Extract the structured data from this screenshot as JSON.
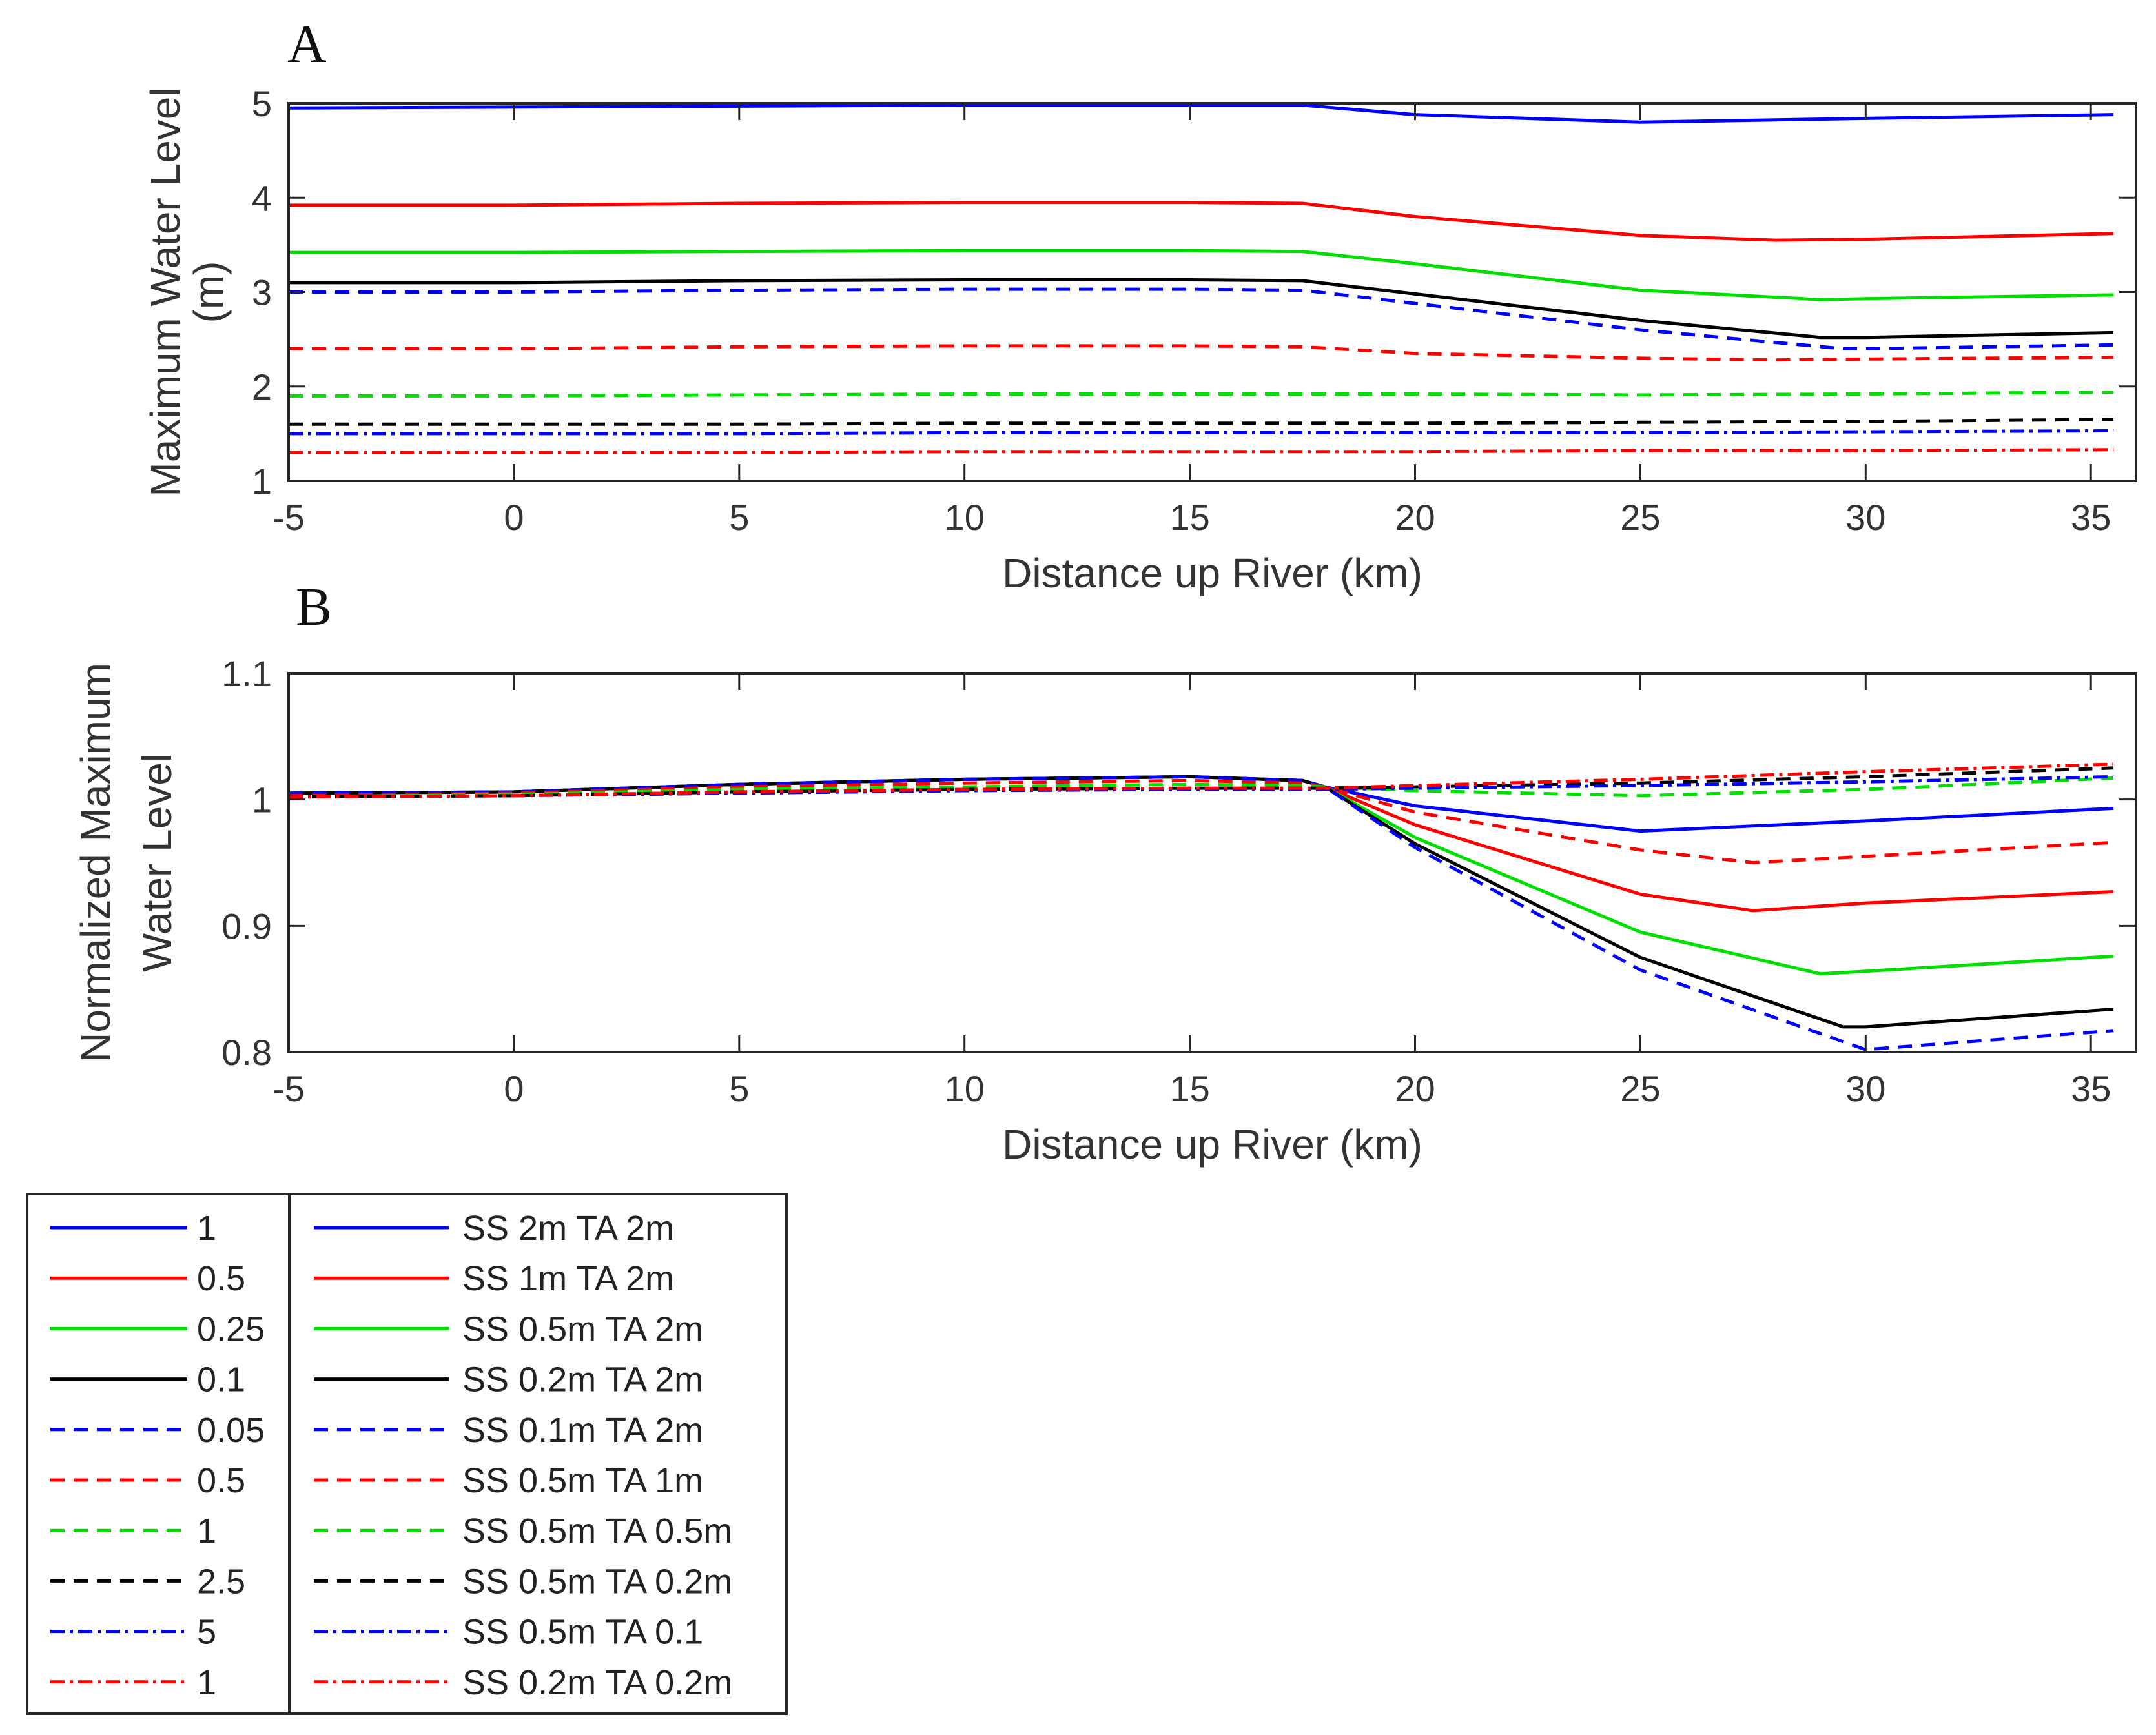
{
  "figure": {
    "panel_a_letter": "A",
    "panel_b_letter": "B"
  },
  "series_styles": [
    {
      "color": "#0000ff",
      "dash": "solid"
    },
    {
      "color": "#ff0000",
      "dash": "solid"
    },
    {
      "color": "#00e000",
      "dash": "solid"
    },
    {
      "color": "#000000",
      "dash": "solid"
    },
    {
      "color": "#0000ff",
      "dash": "dashed"
    },
    {
      "color": "#ff0000",
      "dash": "dashed"
    },
    {
      "color": "#00e000",
      "dash": "dashed"
    },
    {
      "color": "#000000",
      "dash": "dashed"
    },
    {
      "color": "#0000ff",
      "dash": "dashdot"
    },
    {
      "color": "#ff0000",
      "dash": "dashdot"
    }
  ],
  "chart_data": [
    {
      "id": "A",
      "type": "line",
      "title": "",
      "xlabel": "Distance up River (km)",
      "ylabel": "Maximum Water Level (m)",
      "ylabel_lines": [
        "Maximum Water Level",
        "(m)"
      ],
      "xlim": [
        -5,
        36
      ],
      "ylim": [
        1,
        5
      ],
      "xticks": [
        -5,
        0,
        5,
        10,
        15,
        20,
        25,
        30,
        35
      ],
      "yticks": [
        1,
        2,
        3,
        4,
        5
      ],
      "xtick_labels": [
        "-5",
        "0",
        "5",
        "10",
        "15",
        "20",
        "25",
        "30",
        "35"
      ],
      "ytick_labels": [
        "1",
        "2",
        "3",
        "4",
        "5"
      ],
      "series": [
        {
          "name": "SS 2m TA 2m",
          "x": [
            -5,
            0,
            5,
            10,
            15,
            17.5,
            20,
            25,
            30,
            35.5
          ],
          "y": [
            4.95,
            4.96,
            4.97,
            4.98,
            4.98,
            4.98,
            4.88,
            4.8,
            4.84,
            4.88
          ]
        },
        {
          "name": "SS 1m TA 2m",
          "x": [
            -5,
            0,
            5,
            10,
            15,
            17.5,
            20,
            25,
            28,
            30,
            35.5
          ],
          "y": [
            3.92,
            3.92,
            3.94,
            3.95,
            3.95,
            3.94,
            3.8,
            3.6,
            3.55,
            3.56,
            3.62
          ]
        },
        {
          "name": "SS 0.5m TA 2m",
          "x": [
            -5,
            0,
            5,
            10,
            15,
            17.5,
            20,
            25,
            29,
            30,
            35.5
          ],
          "y": [
            3.42,
            3.42,
            3.43,
            3.44,
            3.44,
            3.43,
            3.3,
            3.02,
            2.92,
            2.93,
            2.97
          ]
        },
        {
          "name": "SS 0.2m TA 2m",
          "x": [
            -5,
            0,
            5,
            10,
            15,
            17.5,
            20,
            25,
            29,
            30,
            35.5
          ],
          "y": [
            3.1,
            3.1,
            3.12,
            3.13,
            3.13,
            3.12,
            2.98,
            2.7,
            2.52,
            2.52,
            2.57
          ]
        },
        {
          "name": "SS 0.1m TA 2m",
          "x": [
            -5,
            0,
            5,
            10,
            15,
            17.5,
            20,
            25,
            29.5,
            30,
            35.5
          ],
          "y": [
            3.0,
            3.0,
            3.02,
            3.03,
            3.03,
            3.02,
            2.88,
            2.6,
            2.4,
            2.4,
            2.44
          ]
        },
        {
          "name": "SS 0.5m TA 1m",
          "x": [
            -5,
            0,
            5,
            10,
            15,
            17.5,
            20,
            25,
            28,
            30,
            35.5
          ],
          "y": [
            2.4,
            2.4,
            2.42,
            2.43,
            2.43,
            2.42,
            2.35,
            2.3,
            2.28,
            2.29,
            2.31
          ]
        },
        {
          "name": "SS 0.5m TA 0.5m",
          "x": [
            -5,
            0,
            5,
            10,
            15,
            17.5,
            20,
            25,
            30,
            35.5
          ],
          "y": [
            1.9,
            1.9,
            1.91,
            1.92,
            1.92,
            1.92,
            1.92,
            1.91,
            1.92,
            1.94
          ]
        },
        {
          "name": "SS 0.5m TA 0.2m",
          "x": [
            -5,
            0,
            5,
            10,
            15,
            17.5,
            20,
            25,
            30,
            35.5
          ],
          "y": [
            1.6,
            1.6,
            1.6,
            1.61,
            1.61,
            1.61,
            1.61,
            1.62,
            1.63,
            1.65
          ]
        },
        {
          "name": "SS 0.5m TA 0.1",
          "x": [
            -5,
            0,
            5,
            10,
            15,
            17.5,
            20,
            25,
            30,
            35.5
          ],
          "y": [
            1.5,
            1.5,
            1.5,
            1.51,
            1.51,
            1.51,
            1.51,
            1.51,
            1.52,
            1.53
          ]
        },
        {
          "name": "SS 0.2m TA 0.2m",
          "x": [
            -5,
            0,
            5,
            10,
            15,
            17.5,
            20,
            25,
            30,
            35.5
          ],
          "y": [
            1.3,
            1.3,
            1.3,
            1.31,
            1.31,
            1.31,
            1.31,
            1.32,
            1.32,
            1.33
          ]
        }
      ]
    },
    {
      "id": "B",
      "type": "line",
      "title": "",
      "xlabel": "Distance up River (km)",
      "ylabel": "Normalized Maximum Water Level",
      "ylabel_lines": [
        "Normalized Maximum",
        "Water Level"
      ],
      "xlim": [
        -5,
        36
      ],
      "ylim": [
        0.8,
        1.1
      ],
      "xticks": [
        -5,
        0,
        5,
        10,
        15,
        20,
        25,
        30,
        35
      ],
      "yticks": [
        0.8,
        0.9,
        1.0,
        1.1
      ],
      "xtick_labels": [
        "-5",
        "0",
        "5",
        "10",
        "15",
        "20",
        "25",
        "30",
        "35"
      ],
      "ytick_labels": [
        "0.8",
        "0.9",
        "1",
        "1.1"
      ],
      "series": [
        {
          "name": "SS 2m TA 2m",
          "x": [
            -5,
            0,
            5,
            10,
            15,
            17.5,
            18,
            20,
            25,
            30,
            35.5
          ],
          "y": [
            1.005,
            1.006,
            1.012,
            1.016,
            1.018,
            1.015,
            1.01,
            0.995,
            0.975,
            0.983,
            0.993
          ]
        },
        {
          "name": "SS 1m TA 2m",
          "x": [
            -5,
            0,
            5,
            10,
            15,
            17.5,
            18,
            20,
            25,
            27.5,
            30,
            35.5
          ],
          "y": [
            1.005,
            1.006,
            1.012,
            1.016,
            1.018,
            1.015,
            1.01,
            0.98,
            0.925,
            0.912,
            0.918,
            0.927
          ]
        },
        {
          "name": "SS 0.5m TA 2m",
          "x": [
            -5,
            0,
            5,
            10,
            15,
            17.5,
            18,
            20,
            25,
            29,
            30,
            35.5
          ],
          "y": [
            1.005,
            1.006,
            1.012,
            1.016,
            1.018,
            1.015,
            1.01,
            0.97,
            0.895,
            0.862,
            0.864,
            0.876
          ]
        },
        {
          "name": "SS 0.2m TA 2m",
          "x": [
            -5,
            0,
            5,
            10,
            15,
            17.5,
            18,
            20,
            25,
            29.5,
            30,
            35.5
          ],
          "y": [
            1.005,
            1.006,
            1.012,
            1.016,
            1.018,
            1.015,
            1.01,
            0.965,
            0.875,
            0.82,
            0.82,
            0.834
          ]
        },
        {
          "name": "SS 0.1m TA 2m",
          "x": [
            -5,
            0,
            5,
            10,
            15,
            17.5,
            18,
            20,
            25,
            30,
            35.5
          ],
          "y": [
            1.005,
            1.006,
            1.012,
            1.016,
            1.018,
            1.015,
            1.01,
            0.962,
            0.865,
            0.802,
            0.817
          ]
        },
        {
          "name": "SS 0.5m TA 1m",
          "x": [
            -5,
            0,
            5,
            10,
            15,
            17.5,
            18,
            20,
            25,
            27.5,
            30,
            35.5
          ],
          "y": [
            1.003,
            1.005,
            1.01,
            1.013,
            1.015,
            1.013,
            1.01,
            0.99,
            0.96,
            0.95,
            0.955,
            0.966
          ]
        },
        {
          "name": "SS 0.5m TA 0.5m",
          "x": [
            -5,
            0,
            5,
            10,
            15,
            17.5,
            18,
            20,
            25,
            30,
            35.5
          ],
          "y": [
            1.002,
            1.004,
            1.008,
            1.01,
            1.012,
            1.011,
            1.01,
            1.007,
            1.003,
            1.008,
            1.017
          ]
        },
        {
          "name": "SS 0.5m TA 0.2m",
          "x": [
            -5,
            0,
            5,
            10,
            15,
            17.5,
            18,
            20,
            25,
            30,
            35.5
          ],
          "y": [
            1.002,
            1.003,
            1.006,
            1.008,
            1.009,
            1.009,
            1.009,
            1.01,
            1.013,
            1.018,
            1.025
          ]
        },
        {
          "name": "SS 0.5m TA 0.1",
          "x": [
            -5,
            0,
            5,
            10,
            15,
            17.5,
            18,
            20,
            25,
            30,
            35.5
          ],
          "y": [
            1.002,
            1.003,
            1.005,
            1.007,
            1.008,
            1.008,
            1.008,
            1.009,
            1.011,
            1.014,
            1.018
          ]
        },
        {
          "name": "SS 0.2m TA 0.2m",
          "x": [
            -5,
            0,
            5,
            10,
            15,
            17.5,
            18,
            20,
            25,
            30,
            35.5
          ],
          "y": [
            1.002,
            1.003,
            1.006,
            1.008,
            1.009,
            1.009,
            1.009,
            1.011,
            1.016,
            1.022,
            1.028
          ]
        }
      ]
    }
  ],
  "legend": {
    "column1": [
      "1",
      "0.5",
      "0.25",
      "0.1",
      "0.05",
      "0.5",
      "1",
      "2.5",
      "5",
      "1"
    ],
    "column2": [
      "SS 2m TA 2m",
      "SS 1m TA 2m",
      "SS 0.5m TA 2m",
      "SS 0.2m TA 2m",
      "SS 0.1m TA 2m",
      "SS 0.5m TA 1m",
      "SS 0.5m TA 0.5m",
      "SS 0.5m TA 0.2m",
      "SS 0.5m TA 0.1",
      "SS 0.2m TA 0.2m"
    ]
  }
}
